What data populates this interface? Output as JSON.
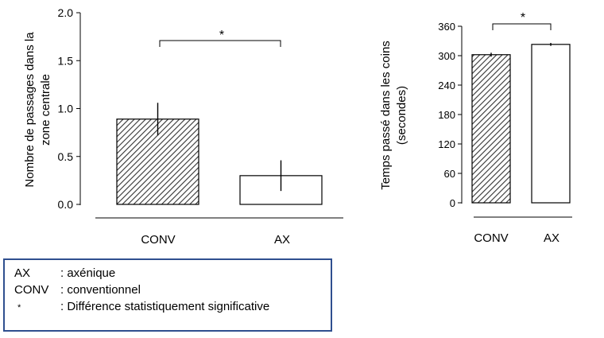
{
  "chart_data": [
    {
      "type": "bar",
      "categories": [
        "CONV",
        "AX"
      ],
      "values": [
        0.89,
        0.3
      ],
      "errors": [
        0.17,
        0.16
      ],
      "ylabel": "Nombre de passages dans la zone centrale",
      "ylabel_lines": [
        "Nombre de passages dans la",
        "zone centrale"
      ],
      "ylim": [
        0,
        2.0
      ],
      "yticks": [
        "0.0",
        "0.5",
        "1.0",
        "1.5",
        "2.0"
      ],
      "ytick_values": [
        0,
        0.5,
        1.0,
        1.5,
        2.0
      ],
      "significance": "*",
      "bar_fills": [
        "hatched",
        "white"
      ]
    },
    {
      "type": "bar",
      "categories": [
        "CONV",
        "AX"
      ],
      "values": [
        302,
        323
      ],
      "errors": [
        4,
        3
      ],
      "ylabel": "Temps passé dans les coins (secondes)",
      "ylabel_lines": [
        "Temps passé dans les coins",
        "(secondes)"
      ],
      "ylim": [
        0,
        360
      ],
      "yticks": [
        "0",
        "60",
        "120",
        "180",
        "240",
        "300",
        "360"
      ],
      "ytick_values": [
        0,
        60,
        120,
        180,
        240,
        300,
        360
      ],
      "significance": "*",
      "bar_fills": [
        "hatched",
        "white"
      ]
    }
  ],
  "legend": {
    "rows": [
      {
        "key": "AX",
        "text": ": axénique"
      },
      {
        "key": "CONV",
        "text": ": conventionnel"
      },
      {
        "key": "*",
        "text": ": Différence statistiquement significative"
      }
    ]
  }
}
